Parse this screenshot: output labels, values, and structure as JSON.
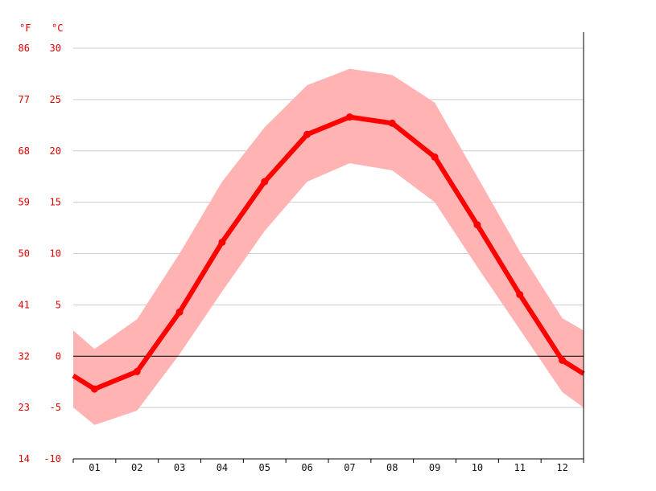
{
  "chart_data": {
    "type": "line",
    "title": "",
    "xlabel": "",
    "ylabel": "",
    "unit_labels": {
      "fahrenheit": "°F",
      "celsius": "°C"
    },
    "categories": [
      "01",
      "02",
      "03",
      "04",
      "05",
      "06",
      "07",
      "08",
      "09",
      "10",
      "11",
      "12"
    ],
    "ylim": [
      -10,
      30
    ],
    "y_ticks_c": [
      "-10",
      "-5",
      "0",
      "5",
      "10",
      "15",
      "20",
      "25",
      "30"
    ],
    "y_ticks_f": [
      "14",
      "23",
      "32",
      "41",
      "50",
      "59",
      "68",
      "77",
      "86"
    ],
    "series": [
      {
        "values": [
          -3.2,
          -1.5,
          4.3,
          11.1,
          17.0,
          21.6,
          23.3,
          22.7,
          19.4,
          12.8,
          6.0,
          -0.4
        ],
        "start_value": -1.9,
        "end_value": -1.7
      }
    ],
    "range_band": {
      "max": [
        0.7,
        3.6,
        10.0,
        17.0,
        22.3,
        26.4,
        28.0,
        27.4,
        24.7,
        17.5,
        10.2,
        3.7
      ],
      "min": [
        -6.7,
        -5.3,
        0.2,
        6.3,
        12.2,
        17.0,
        18.8,
        18.1,
        15.0,
        8.7,
        2.6,
        -3.5
      ],
      "start_max": 2.5,
      "start_min": -5.0,
      "end_max": 2.5,
      "end_min": -5.0
    },
    "grid": true,
    "colors": {
      "line": "#ff0000",
      "band": "#ffb3b3",
      "grid": "#cccccc",
      "zero_line": "#000000",
      "axis_text": "#e00000"
    }
  }
}
